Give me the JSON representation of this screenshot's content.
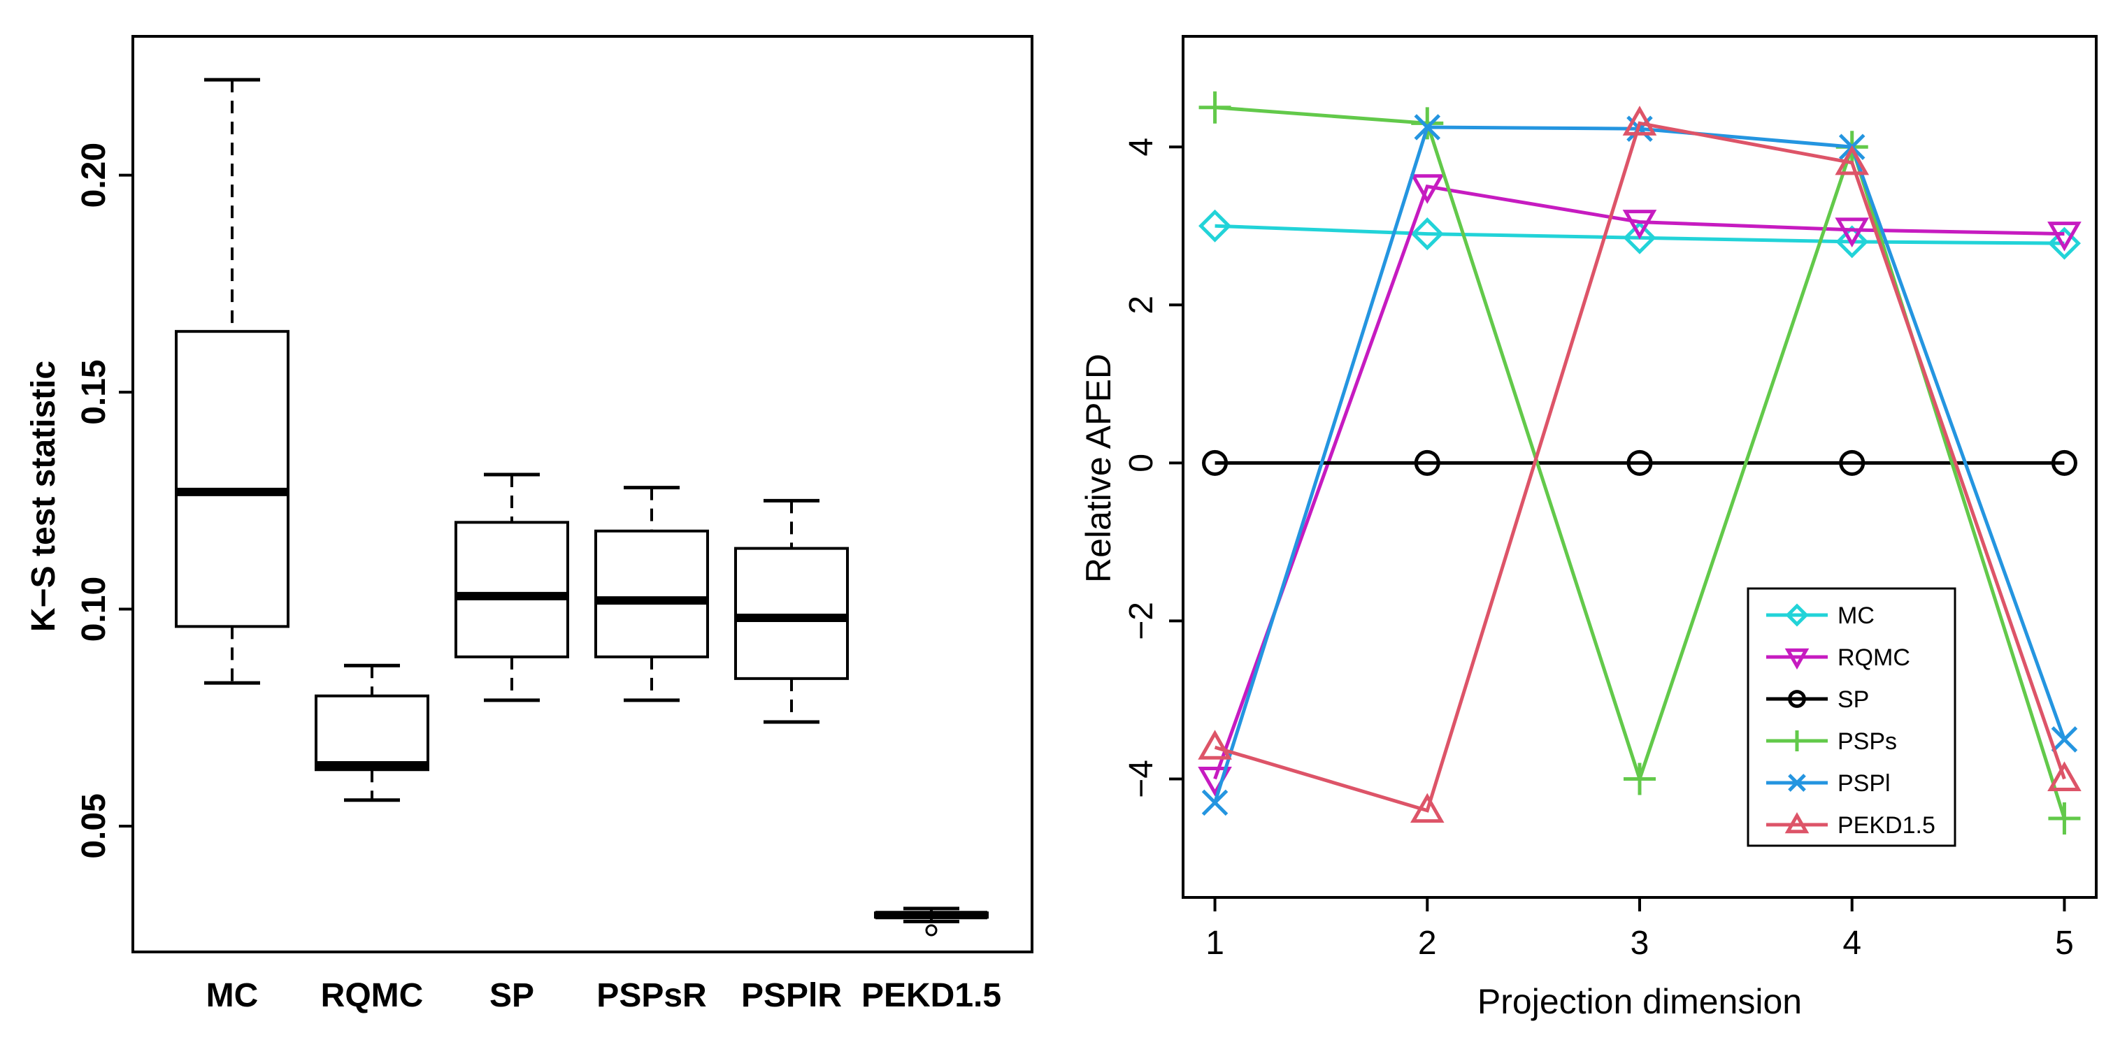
{
  "chart_data": [
    {
      "type": "box",
      "title": "",
      "ylabel": "K−S test statistic",
      "xlabel": "",
      "ylim": [
        0.021,
        0.232
      ],
      "yticks": [
        "0.05",
        "0.10",
        "0.15",
        "0.20"
      ],
      "categories": [
        "MC",
        "RQMC",
        "SP",
        "PSPsR",
        "PSPlR",
        "PEKD1.5"
      ],
      "boxes": [
        {
          "name": "MC",
          "low": 0.083,
          "q1": 0.096,
          "median": 0.127,
          "q3": 0.164,
          "high": 0.222,
          "outliers": []
        },
        {
          "name": "RQMC",
          "low": 0.056,
          "q1": 0.063,
          "median": 0.064,
          "q3": 0.08,
          "high": 0.087,
          "outliers": []
        },
        {
          "name": "SP",
          "low": 0.079,
          "q1": 0.089,
          "median": 0.103,
          "q3": 0.12,
          "high": 0.131,
          "outliers": []
        },
        {
          "name": "PSPsR",
          "low": 0.079,
          "q1": 0.089,
          "median": 0.102,
          "q3": 0.118,
          "high": 0.128,
          "outliers": []
        },
        {
          "name": "PSPlR",
          "low": 0.074,
          "q1": 0.084,
          "median": 0.098,
          "q3": 0.114,
          "high": 0.125,
          "outliers": []
        },
        {
          "name": "PEKD1.5",
          "low": 0.028,
          "q1": 0.029,
          "median": 0.0295,
          "q3": 0.03,
          "high": 0.031,
          "outliers": [
            0.026
          ]
        }
      ]
    },
    {
      "type": "line",
      "title": "",
      "xlabel": "Projection dimension",
      "ylabel": "Relative APED",
      "xlim": [
        0.85,
        5.15
      ],
      "ylim": [
        -5.5,
        5.4
      ],
      "xticks": [
        "1",
        "2",
        "3",
        "4",
        "5"
      ],
      "yticks": [
        "−4",
        "−2",
        "0",
        "2",
        "4"
      ],
      "x": [
        1,
        2,
        3,
        4,
        5
      ],
      "legend_position": "bottom-right",
      "series": [
        {
          "name": "MC",
          "color": "#22d3d8",
          "marker": "diamond",
          "values": [
            3.0,
            2.9,
            2.85,
            2.8,
            2.78
          ]
        },
        {
          "name": "RQMC",
          "color": "#c61bc0",
          "marker": "triangle-down",
          "values": [
            -4.0,
            3.5,
            3.05,
            2.95,
            2.9
          ]
        },
        {
          "name": "SP",
          "color": "#000000",
          "marker": "circle",
          "values": [
            0,
            0,
            0,
            0,
            0
          ]
        },
        {
          "name": "PSPs",
          "color": "#62c94a",
          "marker": "plus",
          "values": [
            4.5,
            4.3,
            -4.0,
            4.0,
            -4.5
          ]
        },
        {
          "name": "PSPl",
          "color": "#2495e0",
          "marker": "cross",
          "values": [
            -4.3,
            4.25,
            4.23,
            4.0,
            -3.5
          ]
        },
        {
          "name": "PEKD1.5",
          "color": "#dd5468",
          "marker": "triangle-up",
          "values": [
            -3.6,
            -4.4,
            4.3,
            3.8,
            -4.0
          ]
        }
      ]
    }
  ]
}
